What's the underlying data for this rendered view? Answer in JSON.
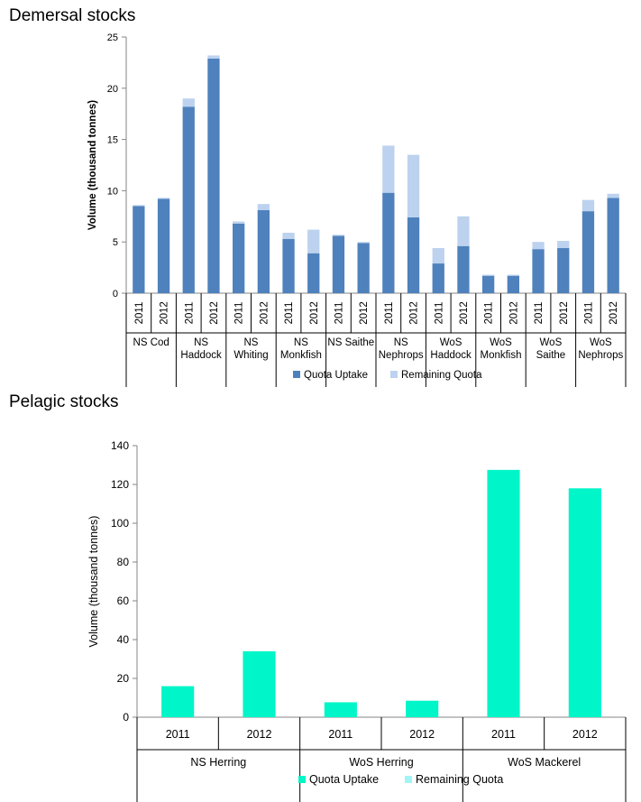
{
  "sections": {
    "demersal_title": "Demersal stocks",
    "pelagic_title": "Pelagic stocks"
  },
  "chart_data": [
    {
      "type": "bar",
      "stacked": true,
      "title": "Demersal stocks",
      "ylabel": "Volume (thousand tonnes)",
      "ylim": [
        0,
        25
      ],
      "yticks": [
        0,
        5,
        10,
        15,
        20,
        25
      ],
      "grid": false,
      "legend_position": "bottom",
      "groups": [
        {
          "label": "NS Cod",
          "years": [
            "2011",
            "2012"
          ]
        },
        {
          "label": "NS Haddock",
          "years": [
            "2011",
            "2012"
          ]
        },
        {
          "label": "NS Whiting",
          "years": [
            "2011",
            "2012"
          ]
        },
        {
          "label": "NS Monkfish",
          "years": [
            "2011",
            "2012"
          ]
        },
        {
          "label": "NS Saithe",
          "years": [
            "2011",
            "2012"
          ]
        },
        {
          "label": "NS Nephrops",
          "years": [
            "2011",
            "2012"
          ]
        },
        {
          "label": "WoS Haddock",
          "years": [
            "2011",
            "2012"
          ]
        },
        {
          "label": "WoS Monkfish",
          "years": [
            "2011",
            "2012"
          ]
        },
        {
          "label": "WoS Saithe",
          "years": [
            "2011",
            "2012"
          ]
        },
        {
          "label": "WoS Nephrops",
          "years": [
            "2011",
            "2012"
          ]
        }
      ],
      "series": [
        {
          "name": "Quota Uptake",
          "color": "#4f81bd",
          "values": [
            8.5,
            9.2,
            18.2,
            22.9,
            6.8,
            8.1,
            5.3,
            3.9,
            5.6,
            4.9,
            9.8,
            7.4,
            2.9,
            4.6,
            1.7,
            1.7,
            4.3,
            4.4,
            8.0,
            9.3
          ]
        },
        {
          "name": "Remaining Quota",
          "color": "#bcd2ee",
          "values": [
            0.1,
            0.1,
            0.8,
            0.3,
            0.2,
            0.6,
            0.6,
            2.3,
            0.1,
            0.1,
            4.6,
            6.1,
            1.5,
            2.9,
            0.1,
            0.1,
            0.7,
            0.7,
            1.1,
            0.4
          ]
        }
      ]
    },
    {
      "type": "bar",
      "stacked": true,
      "title": "Pelagic stocks",
      "ylabel": "Volume (thousand tonnes)",
      "ylim": [
        0,
        140
      ],
      "yticks": [
        0,
        20,
        40,
        60,
        80,
        100,
        120,
        140
      ],
      "grid": false,
      "legend_position": "bottom",
      "groups": [
        {
          "label": "NS Herring",
          "years": [
            "2011",
            "2012"
          ]
        },
        {
          "label": "WoS Herring",
          "years": [
            "2011",
            "2012"
          ]
        },
        {
          "label": "WoS Mackerel",
          "years": [
            "2011",
            "2012"
          ]
        }
      ],
      "series": [
        {
          "name": "Quota Uptake",
          "color": "#00f5c8",
          "values": [
            16,
            34,
            7.7,
            8.5,
            127.5,
            118
          ]
        },
        {
          "name": "Remaining Quota",
          "color": "#a2f5f5",
          "values": [
            0,
            0,
            0,
            0,
            0,
            0
          ]
        }
      ]
    }
  ]
}
